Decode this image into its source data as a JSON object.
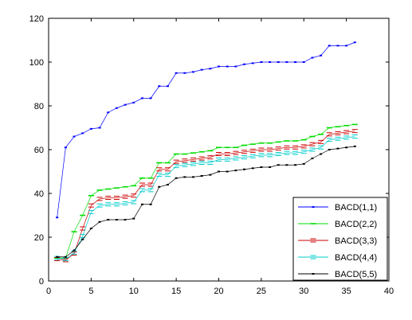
{
  "chart_data": {
    "type": "line",
    "title": "",
    "xlabel": "",
    "ylabel": "",
    "xlim": [
      0,
      40
    ],
    "ylim": [
      0,
      120
    ],
    "xticks": [
      0,
      5,
      10,
      15,
      20,
      25,
      30,
      35,
      40
    ],
    "yticks": [
      0,
      20,
      40,
      60,
      80,
      100,
      120
    ],
    "grid": false,
    "legend_position": "bottom-right",
    "series": [
      {
        "name": "BACD(1,1)",
        "color": "#0000ff",
        "marker": "dot",
        "x": [
          1,
          2,
          3,
          4,
          5,
          6,
          7,
          8,
          9,
          10,
          11,
          12,
          13,
          14,
          15,
          16,
          17,
          18,
          19,
          20,
          21,
          22,
          23,
          24,
          25,
          26,
          27,
          28,
          29,
          30,
          31,
          32,
          33,
          34,
          35,
          36
        ],
        "y": [
          29,
          61,
          66,
          67.5,
          69.5,
          70,
          77,
          79,
          80.5,
          81.5,
          83.5,
          83.5,
          89,
          89,
          95,
          95,
          95.5,
          96.5,
          97,
          98,
          98,
          98,
          99,
          99.5,
          100,
          100,
          100,
          100,
          100,
          100,
          102,
          103,
          107.5,
          107.5,
          107.5,
          109
        ]
      },
      {
        "name": "BACD(2,2)",
        "color": "#00dd00",
        "marker": "dash",
        "x": [
          1,
          2,
          3,
          4,
          5,
          6,
          7,
          8,
          9,
          10,
          11,
          12,
          13,
          14,
          15,
          16,
          17,
          18,
          19,
          20,
          21,
          22,
          23,
          24,
          25,
          26,
          27,
          28,
          29,
          30,
          31,
          32,
          33,
          34,
          35,
          36
        ],
        "y": [
          10.5,
          10.5,
          22.5,
          30,
          39,
          41.5,
          42,
          42.5,
          43,
          43.5,
          47,
          47,
          54,
          54,
          58,
          58,
          58.5,
          59,
          59.5,
          61,
          61,
          61,
          62,
          62.5,
          63,
          63,
          63.5,
          64,
          64,
          64.5,
          66,
          67,
          70,
          70.5,
          71,
          71.5
        ]
      },
      {
        "name": "BACD(3,3)",
        "color": "#cc0000",
        "marker": "box",
        "x": [
          1,
          2,
          3,
          4,
          5,
          6,
          7,
          8,
          9,
          10,
          11,
          12,
          13,
          14,
          15,
          16,
          17,
          18,
          19,
          20,
          21,
          22,
          23,
          24,
          25,
          26,
          27,
          28,
          29,
          30,
          31,
          32,
          33,
          34,
          35,
          36
        ],
        "y": [
          10,
          9.5,
          12.5,
          24,
          34.5,
          37.5,
          38,
          38,
          38.5,
          39,
          44,
          44,
          51,
          51,
          54.5,
          55,
          55.5,
          56,
          56.5,
          58,
          58,
          58.5,
          59,
          59.5,
          60,
          60,
          60.5,
          61,
          61,
          61.5,
          62.5,
          63.5,
          67,
          67.5,
          68,
          68.5
        ]
      },
      {
        "name": "BACD(4,4)",
        "color": "#00cccc",
        "marker": "box",
        "x": [
          1,
          2,
          3,
          4,
          5,
          6,
          7,
          8,
          9,
          10,
          11,
          12,
          13,
          14,
          15,
          16,
          17,
          18,
          19,
          20,
          21,
          22,
          23,
          24,
          25,
          26,
          27,
          28,
          29,
          30,
          31,
          32,
          33,
          34,
          35,
          36
        ],
        "y": [
          10.5,
          10,
          13,
          20.5,
          31.5,
          34.5,
          35,
          35,
          35.5,
          36,
          41.5,
          41.5,
          48.5,
          48.5,
          52.5,
          53,
          53.5,
          54,
          54,
          55.5,
          55.5,
          56,
          56.5,
          57,
          57.5,
          57.5,
          58,
          58.5,
          58.5,
          59,
          60,
          61,
          64.5,
          65,
          65.5,
          66
        ]
      },
      {
        "name": "BACD(5,5)",
        "color": "#000000",
        "marker": "dot",
        "x": [
          1,
          2,
          3,
          4,
          5,
          6,
          7,
          8,
          9,
          10,
          11,
          12,
          13,
          14,
          15,
          16,
          17,
          18,
          19,
          20,
          21,
          22,
          23,
          24,
          25,
          26,
          27,
          28,
          29,
          30,
          31,
          32,
          33,
          34,
          35,
          36
        ],
        "y": [
          11,
          11,
          14,
          19,
          24,
          27,
          28,
          28,
          28,
          28.5,
          35,
          35,
          43,
          44,
          47,
          47.5,
          47.5,
          48,
          48.5,
          50,
          50,
          50.5,
          51,
          51.5,
          52,
          52,
          53,
          53,
          53,
          53.5,
          56,
          58,
          60,
          60.5,
          61,
          61.5
        ]
      }
    ]
  }
}
